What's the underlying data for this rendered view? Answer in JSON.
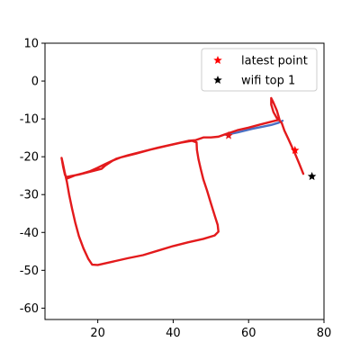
{
  "chart_data": {
    "type": "scatter",
    "title": "",
    "xlabel": "",
    "ylabel": "",
    "xlim": [
      6,
      80
    ],
    "ylim": [
      -63,
      10
    ],
    "xticks": [
      20,
      40,
      60,
      80
    ],
    "yticks": [
      10,
      0,
      -10,
      -20,
      -30,
      -40,
      -50,
      -60
    ],
    "grid": false,
    "legend_position": "top-right",
    "series": [
      {
        "kind": "line",
        "color": "#4a6fc2",
        "points": [
          [
            54,
            -14.2
          ],
          [
            57,
            -13.6
          ],
          [
            61,
            -12.6
          ],
          [
            64,
            -12
          ],
          [
            66,
            -11.6
          ],
          [
            68,
            -11
          ],
          [
            69,
            -10.5
          ]
        ]
      },
      {
        "kind": "line",
        "color": "#e31a1c",
        "points": [
          [
            74.5,
            -24.5
          ],
          [
            73.5,
            -22
          ],
          [
            72.5,
            -19.6
          ],
          [
            71.5,
            -17.4
          ],
          [
            70.5,
            -15.2
          ],
          [
            69.5,
            -13.1
          ],
          [
            68.8,
            -11.1
          ],
          [
            68.2,
            -10.4
          ],
          [
            67.5,
            -9.8
          ],
          [
            66.6,
            -8.2
          ],
          [
            66,
            -6.2
          ],
          [
            66,
            -4.5
          ],
          [
            66.5,
            -5.5
          ],
          [
            67.5,
            -7.8
          ],
          [
            68.2,
            -10.2
          ],
          [
            67,
            -10.5
          ],
          [
            63,
            -11.5
          ],
          [
            60,
            -12.3
          ],
          [
            57,
            -13
          ],
          [
            54,
            -14
          ],
          [
            52,
            -14.7
          ],
          [
            50,
            -14.9
          ],
          [
            48,
            -14.9
          ],
          [
            46,
            -15.6
          ],
          [
            44,
            -15.8
          ],
          [
            40,
            -16.7
          ],
          [
            36,
            -17.6
          ],
          [
            32,
            -18.6
          ],
          [
            28,
            -19.6
          ],
          [
            25,
            -20.5
          ],
          [
            22,
            -21.9
          ],
          [
            20,
            -22.9
          ],
          [
            18,
            -23.8
          ],
          [
            16,
            -24.4
          ],
          [
            14,
            -24.9
          ],
          [
            12,
            -25.7
          ],
          [
            11.3,
            -24.8
          ],
          [
            10.8,
            -22.6
          ],
          [
            10.4,
            -20.3
          ],
          [
            10.7,
            -21.6
          ],
          [
            11.2,
            -24
          ],
          [
            11.8,
            -26.6
          ],
          [
            12.4,
            -30
          ],
          [
            13.2,
            -33.8
          ],
          [
            14,
            -37.3
          ],
          [
            15,
            -41
          ],
          [
            16.2,
            -44.2
          ],
          [
            17.5,
            -47
          ],
          [
            18.5,
            -48.5
          ],
          [
            20,
            -48.6
          ],
          [
            24,
            -47.7
          ],
          [
            28,
            -46.8
          ],
          [
            32,
            -46
          ],
          [
            36,
            -44.8
          ],
          [
            40,
            -43.6
          ],
          [
            44,
            -42.6
          ],
          [
            48,
            -41.7
          ],
          [
            51,
            -40.8
          ],
          [
            52,
            -39.8
          ],
          [
            51.8,
            -38
          ],
          [
            51,
            -35.5
          ],
          [
            50,
            -32.3
          ],
          [
            49,
            -29
          ],
          [
            48,
            -26
          ],
          [
            47.3,
            -23.2
          ],
          [
            46.7,
            -20.6
          ],
          [
            46.3,
            -18.2
          ],
          [
            46.2,
            -16.2
          ],
          [
            45,
            -15.8
          ],
          [
            42,
            -16.3
          ],
          [
            38,
            -17.2
          ],
          [
            34,
            -18.1
          ],
          [
            30,
            -19.2
          ],
          [
            26,
            -20.2
          ],
          [
            24,
            -21
          ],
          [
            22,
            -22.3
          ],
          [
            21,
            -23.2
          ],
          [
            19,
            -23.7
          ],
          [
            17,
            -24.2
          ],
          [
            15,
            -24.7
          ],
          [
            13,
            -25.1
          ],
          [
            12,
            -25.3
          ]
        ]
      }
    ],
    "markers": [
      {
        "name": "latest point",
        "x": 72.3,
        "y": -18.3,
        "color": "#ff0000",
        "marker": "star"
      },
      {
        "name": "wifi top 1",
        "x": 76.8,
        "y": -25.2,
        "color": "#000000",
        "marker": "star"
      },
      {
        "name": "",
        "x": 54.7,
        "y": -14.4,
        "color": "#e31a1c",
        "marker": "star"
      }
    ],
    "legend": [
      {
        "label": "latest point",
        "color": "#ff0000",
        "marker": "star"
      },
      {
        "label": "wifi top 1",
        "color": "#000000",
        "marker": "star"
      }
    ]
  }
}
